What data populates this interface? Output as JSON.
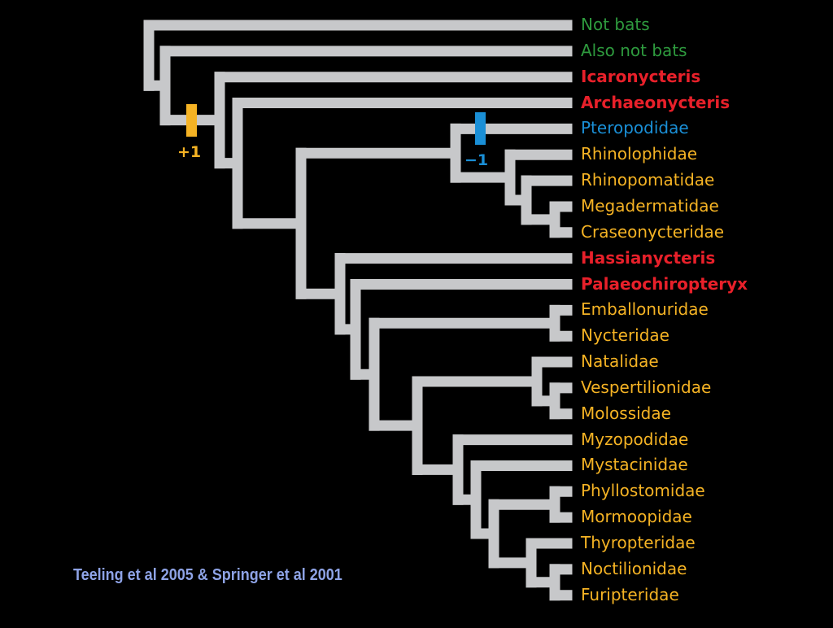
{
  "colors": {
    "branch": "#c7c8ca",
    "green": "#2e9a3e",
    "red": "#e8202a",
    "blue": "#1a8fd6",
    "yellow": "#f5b324",
    "citation": "#8ea3e6"
  },
  "taxa": [
    {
      "name": "Not bats",
      "color": "green",
      "bold": false
    },
    {
      "name": "Also not bats",
      "color": "green",
      "bold": false
    },
    {
      "name": "Icaronycteris",
      "color": "red",
      "bold": true
    },
    {
      "name": "Archaeonycteris",
      "color": "red",
      "bold": true
    },
    {
      "name": "Pteropodidae",
      "color": "blue",
      "bold": false
    },
    {
      "name": "Rhinolophidae",
      "color": "yellow",
      "bold": false
    },
    {
      "name": "Rhinopomatidae",
      "color": "yellow",
      "bold": false
    },
    {
      "name": "Megadermatidae",
      "color": "yellow",
      "bold": false
    },
    {
      "name": "Craseonycteridae",
      "color": "yellow",
      "bold": false
    },
    {
      "name": "Hassianycteris",
      "color": "red",
      "bold": true
    },
    {
      "name": "Palaeochiropteryx",
      "color": "red",
      "bold": true
    },
    {
      "name": "Emballonuridae",
      "color": "yellow",
      "bold": false
    },
    {
      "name": "Nycteridae",
      "color": "yellow",
      "bold": false
    },
    {
      "name": "Natalidae",
      "color": "yellow",
      "bold": false
    },
    {
      "name": "Vespertilionidae",
      "color": "yellow",
      "bold": false
    },
    {
      "name": "Molossidae",
      "color": "yellow",
      "bold": false
    },
    {
      "name": "Myzopodidae",
      "color": "yellow",
      "bold": false
    },
    {
      "name": "Mystacinidae",
      "color": "yellow",
      "bold": false
    },
    {
      "name": "Phyllostomidae",
      "color": "yellow",
      "bold": false
    },
    {
      "name": "Mormoopidae",
      "color": "yellow",
      "bold": false
    },
    {
      "name": "Thyropteridae",
      "color": "yellow",
      "bold": false
    },
    {
      "name": "Noctilionidae",
      "color": "yellow",
      "bold": false
    },
    {
      "name": "Furipteridae",
      "color": "yellow",
      "bold": false
    }
  ],
  "markers": [
    {
      "label": "+1",
      "color": "yellow"
    },
    {
      "label": "−1",
      "color": "blue"
    }
  ],
  "citation": "Teeling et al 2005 & Springer et al 2001"
}
